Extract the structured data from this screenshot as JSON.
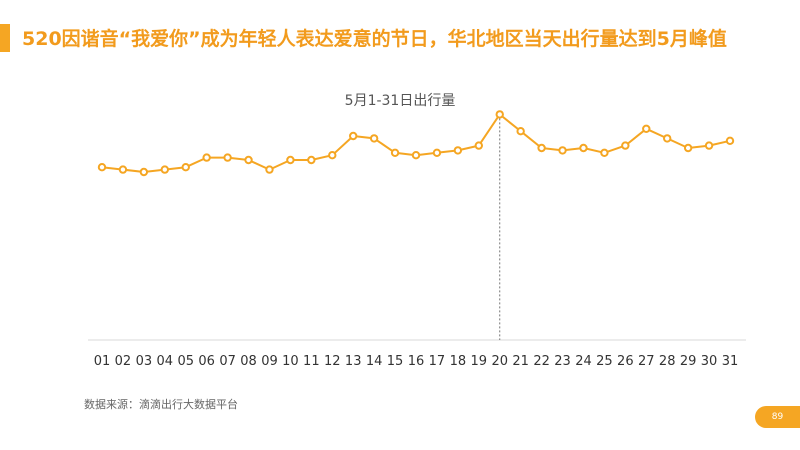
{
  "title": "520因谐音“我爱你”成为年轻人表达爱意的节日，华北地区当天出行量达到5月峰值",
  "source": "数据来源：滴滴出行大数据平台",
  "page_number": "89",
  "colors": {
    "accent": "#f5a623",
    "line": "#f5a623",
    "title": "#f29b1d"
  },
  "chart_data": {
    "type": "line",
    "title": "5月1-31日出行量",
    "xlabel": "",
    "ylabel": "",
    "grid": false,
    "y_axis_visible": false,
    "ylim": [
      0,
      100
    ],
    "highlight": "20",
    "categories": [
      "01",
      "02",
      "03",
      "04",
      "05",
      "06",
      "07",
      "08",
      "09",
      "10",
      "11",
      "12",
      "13",
      "14",
      "15",
      "16",
      "17",
      "18",
      "19",
      "20",
      "21",
      "22",
      "23",
      "24",
      "25",
      "26",
      "27",
      "28",
      "29",
      "30",
      "31"
    ],
    "series": [
      {
        "values": [
          72,
          71,
          70,
          71,
          72,
          76,
          76,
          75,
          71,
          75,
          75,
          77,
          85,
          84,
          78,
          77,
          78,
          79,
          81,
          94,
          87,
          80,
          79,
          80,
          78,
          81,
          88,
          84,
          80,
          81,
          83
        ]
      }
    ]
  }
}
